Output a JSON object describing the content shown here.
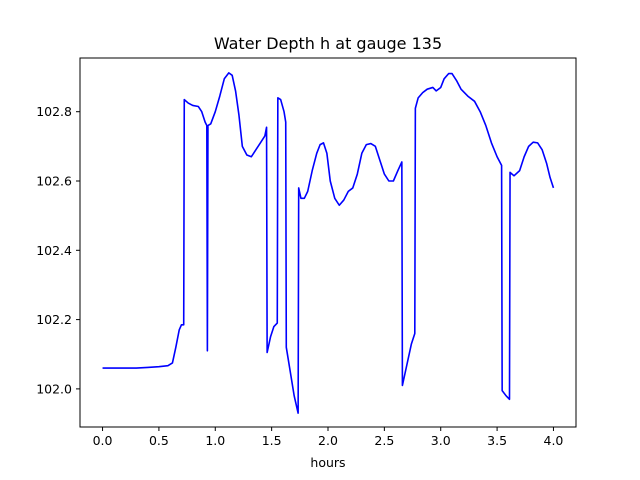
{
  "chart_data": {
    "type": "line",
    "title": "Water Depth h at gauge 135",
    "xlabel": "hours",
    "ylabel": "",
    "xlim": [
      -0.2,
      4.2
    ],
    "ylim": [
      101.89,
      102.955
    ],
    "xticks": [
      0.0,
      0.5,
      1.0,
      1.5,
      2.0,
      2.5,
      3.0,
      3.5,
      4.0
    ],
    "xtick_labels": [
      "0.0",
      "0.5",
      "1.0",
      "1.5",
      "2.0",
      "2.5",
      "3.0",
      "3.5",
      "4.0"
    ],
    "yticks": [
      102.0,
      102.2,
      102.4,
      102.6,
      102.8
    ],
    "ytick_labels": [
      "102.0",
      "102.2",
      "102.4",
      "102.6",
      "102.8"
    ],
    "grid": false,
    "series": [
      {
        "name": "h",
        "color": "#0000ff",
        "points": [
          [
            0.0,
            102.06
          ],
          [
            0.1,
            102.06
          ],
          [
            0.2,
            102.06
          ],
          [
            0.3,
            102.06
          ],
          [
            0.4,
            102.062
          ],
          [
            0.5,
            102.064
          ],
          [
            0.58,
            102.067
          ],
          [
            0.62,
            102.075
          ],
          [
            0.65,
            102.12
          ],
          [
            0.68,
            102.17
          ],
          [
            0.7,
            102.185
          ],
          [
            0.72,
            102.185
          ],
          [
            0.725,
            102.835
          ],
          [
            0.76,
            102.825
          ],
          [
            0.8,
            102.818
          ],
          [
            0.85,
            102.815
          ],
          [
            0.88,
            102.8
          ],
          [
            0.91,
            102.77
          ],
          [
            0.925,
            102.76
          ],
          [
            0.93,
            102.11
          ],
          [
            0.935,
            102.76
          ],
          [
            0.96,
            102.765
          ],
          [
            1.0,
            102.8
          ],
          [
            1.04,
            102.845
          ],
          [
            1.08,
            102.895
          ],
          [
            1.12,
            102.912
          ],
          [
            1.15,
            102.905
          ],
          [
            1.18,
            102.86
          ],
          [
            1.21,
            102.79
          ],
          [
            1.24,
            102.7
          ],
          [
            1.28,
            102.675
          ],
          [
            1.32,
            102.67
          ],
          [
            1.36,
            102.69
          ],
          [
            1.4,
            102.71
          ],
          [
            1.44,
            102.73
          ],
          [
            1.455,
            102.755
          ],
          [
            1.46,
            102.105
          ],
          [
            1.49,
            102.15
          ],
          [
            1.52,
            102.18
          ],
          [
            1.55,
            102.19
          ],
          [
            1.555,
            102.84
          ],
          [
            1.58,
            102.835
          ],
          [
            1.61,
            102.8
          ],
          [
            1.625,
            102.77
          ],
          [
            1.63,
            102.12
          ],
          [
            1.67,
            102.04
          ],
          [
            1.7,
            101.98
          ],
          [
            1.735,
            101.93
          ],
          [
            1.74,
            102.58
          ],
          [
            1.76,
            102.55
          ],
          [
            1.79,
            102.55
          ],
          [
            1.82,
            102.57
          ],
          [
            1.86,
            102.63
          ],
          [
            1.9,
            102.68
          ],
          [
            1.93,
            102.705
          ],
          [
            1.96,
            102.71
          ],
          [
            1.99,
            102.68
          ],
          [
            2.02,
            102.6
          ],
          [
            2.06,
            102.55
          ],
          [
            2.1,
            102.53
          ],
          [
            2.14,
            102.545
          ],
          [
            2.18,
            102.57
          ],
          [
            2.22,
            102.58
          ],
          [
            2.26,
            102.62
          ],
          [
            2.3,
            102.68
          ],
          [
            2.34,
            102.705
          ],
          [
            2.38,
            102.708
          ],
          [
            2.42,
            102.7
          ],
          [
            2.46,
            102.66
          ],
          [
            2.5,
            102.62
          ],
          [
            2.54,
            102.6
          ],
          [
            2.58,
            102.6
          ],
          [
            2.62,
            102.63
          ],
          [
            2.655,
            102.655
          ],
          [
            2.66,
            102.01
          ],
          [
            2.7,
            102.07
          ],
          [
            2.74,
            102.13
          ],
          [
            2.77,
            102.16
          ],
          [
            2.775,
            102.81
          ],
          [
            2.8,
            102.84
          ],
          [
            2.84,
            102.855
          ],
          [
            2.88,
            102.865
          ],
          [
            2.93,
            102.87
          ],
          [
            2.96,
            102.86
          ],
          [
            3.0,
            102.87
          ],
          [
            3.03,
            102.895
          ],
          [
            3.07,
            102.91
          ],
          [
            3.1,
            102.91
          ],
          [
            3.14,
            102.89
          ],
          [
            3.18,
            102.865
          ],
          [
            3.24,
            102.845
          ],
          [
            3.3,
            102.83
          ],
          [
            3.35,
            102.8
          ],
          [
            3.4,
            102.76
          ],
          [
            3.45,
            102.71
          ],
          [
            3.5,
            102.67
          ],
          [
            3.54,
            102.645
          ],
          [
            3.545,
            101.995
          ],
          [
            3.58,
            101.98
          ],
          [
            3.61,
            101.97
          ],
          [
            3.615,
            102.625
          ],
          [
            3.65,
            102.615
          ],
          [
            3.7,
            102.63
          ],
          [
            3.74,
            102.67
          ],
          [
            3.78,
            102.7
          ],
          [
            3.82,
            102.712
          ],
          [
            3.86,
            102.71
          ],
          [
            3.9,
            102.69
          ],
          [
            3.94,
            102.65
          ],
          [
            3.97,
            102.61
          ],
          [
            4.0,
            102.58
          ]
        ]
      }
    ]
  }
}
